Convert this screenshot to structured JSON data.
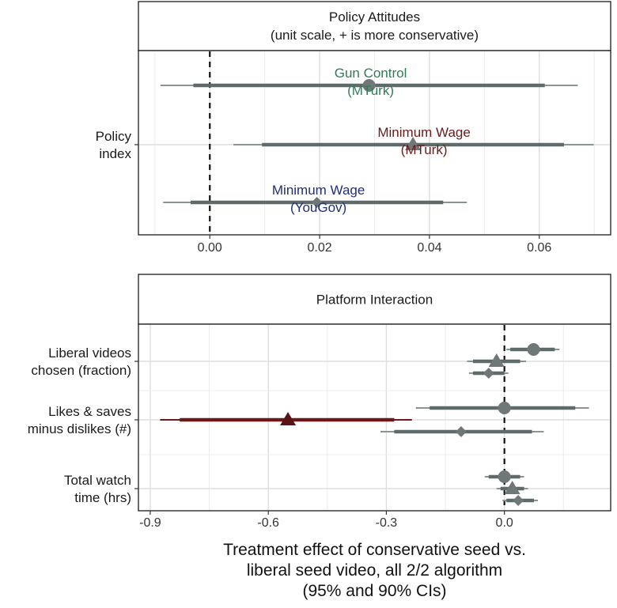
{
  "chart_data": [
    {
      "type": "dot-whisker",
      "title": "Policy Attitudes",
      "subtitle": "(unit scale, + is more conservative)",
      "xlim": [
        -0.013,
        0.073
      ],
      "xticks": [
        0.0,
        0.02,
        0.04,
        0.06
      ],
      "xtick_labels": [
        "0.00",
        "0.02",
        "0.04",
        "0.06"
      ],
      "reference_line": 0,
      "rows": [
        {
          "label_lines": [
            "Policy",
            "index"
          ]
        }
      ],
      "series": [
        {
          "name_lines": [
            "Gun Control",
            "(MTurk)"
          ],
          "shape": "circle",
          "color": "#2e7d55",
          "row": 0,
          "slot": "top",
          "estimate": 0.029,
          "ci90": [
            -0.003,
            0.061
          ],
          "ci95": [
            -0.009,
            0.067
          ]
        },
        {
          "name_lines": [
            "Minimum Wage",
            "(MTurk)"
          ],
          "shape": "triangle",
          "color": "#6b1a1a",
          "row": 0,
          "slot": "middle",
          "estimate": 0.037,
          "ci90": [
            0.0095,
            0.0645
          ],
          "ci95": [
            0.0043,
            0.0699
          ]
        },
        {
          "name_lines": [
            "Minimum Wage",
            "(YouGov)"
          ],
          "shape": "diamond",
          "color": "#1f2f7a",
          "row": 0,
          "slot": "bottom",
          "estimate": 0.0195,
          "ci90": [
            -0.0035,
            0.0425
          ],
          "ci95": [
            -0.0085,
            0.0468
          ]
        }
      ]
    },
    {
      "type": "dot-whisker",
      "title": "Platform Interaction",
      "xlim": [
        -0.93,
        0.27
      ],
      "xticks": [
        -0.9,
        -0.6,
        -0.3,
        0.0
      ],
      "xtick_labels": [
        "-0.9",
        "-0.6",
        "-0.3",
        "0.0"
      ],
      "reference_line": 0,
      "xlabel_lines": [
        "Treatment effect of conservative seed vs.",
        "liberal seed video, all 2/2 algorithm",
        "(95% and 90% CIs)"
      ],
      "rows": [
        {
          "label_lines": [
            "Liberal videos",
            "chosen (fraction)"
          ]
        },
        {
          "label_lines": [
            "Likes & saves",
            "minus dislikes (#)"
          ]
        },
        {
          "label_lines": [
            "Total watch",
            "time (hrs)"
          ]
        }
      ],
      "series": [
        {
          "row": 0,
          "slot": "top",
          "shape": "circle",
          "color": "#7a7a7a",
          "estimate": 0.074,
          "ci90": [
            0.015,
            0.128
          ],
          "ci95": [
            0.005,
            0.14
          ]
        },
        {
          "row": 0,
          "slot": "middle",
          "shape": "triangle",
          "color": "#7a7a7a",
          "estimate": -0.02,
          "ci90": [
            -0.08,
            0.04
          ],
          "ci95": [
            -0.095,
            0.055
          ]
        },
        {
          "row": 0,
          "slot": "bottom",
          "shape": "diamond",
          "color": "#7a7a7a",
          "estimate": -0.04,
          "ci90": [
            -0.08,
            0.0
          ],
          "ci95": [
            -0.09,
            0.01
          ]
        },
        {
          "row": 1,
          "slot": "top",
          "shape": "circle",
          "color": "#7a7a7a",
          "estimate": 0.0,
          "ci90": [
            -0.19,
            0.18
          ],
          "ci95": [
            -0.225,
            0.215
          ]
        },
        {
          "row": 1,
          "slot": "middle",
          "shape": "triangle",
          "color": "#6b1a1a",
          "estimate": -0.55,
          "ci90": [
            -0.825,
            -0.28
          ],
          "ci95": [
            -0.875,
            -0.235
          ]
        },
        {
          "row": 1,
          "slot": "bottom",
          "shape": "diamond",
          "color": "#7a7a7a",
          "estimate": -0.11,
          "ci90": [
            -0.28,
            0.07
          ],
          "ci95": [
            -0.315,
            0.1
          ]
        },
        {
          "row": 2,
          "slot": "top",
          "shape": "circle",
          "color": "#7a7a7a",
          "estimate": 0.0,
          "ci90": [
            -0.04,
            0.04
          ],
          "ci95": [
            -0.05,
            0.05
          ]
        },
        {
          "row": 2,
          "slot": "middle",
          "shape": "triangle",
          "color": "#7a7a7a",
          "estimate": 0.02,
          "ci90": [
            -0.01,
            0.05
          ],
          "ci95": [
            -0.02,
            0.06
          ]
        },
        {
          "row": 2,
          "slot": "bottom",
          "shape": "diamond",
          "color": "#7a7a7a",
          "estimate": 0.035,
          "ci90": [
            0.005,
            0.075
          ],
          "ci95": [
            -0.005,
            0.085
          ]
        }
      ]
    }
  ]
}
